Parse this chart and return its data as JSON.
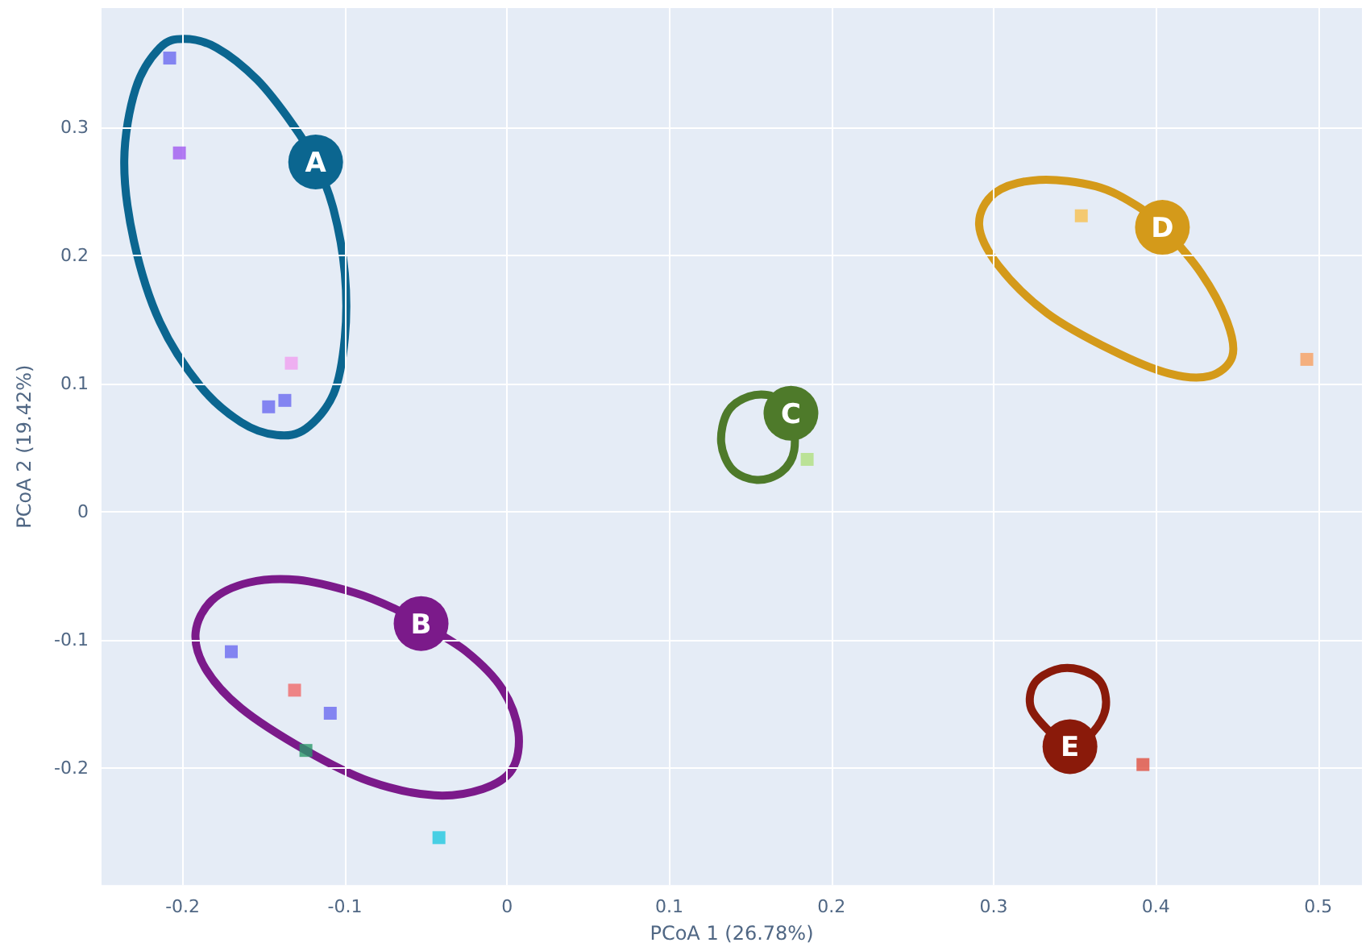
{
  "chart_data": {
    "type": "scatter",
    "xlabel": "PCoA 1 (26.78%)",
    "ylabel": "PCoA 2 (19.42%)",
    "xlim": [
      -0.25,
      0.527
    ],
    "ylim": [
      -0.291,
      0.393
    ],
    "xticks": [
      -0.2,
      -0.1,
      0,
      0.1,
      0.2,
      0.3,
      0.4,
      0.5
    ],
    "yticks": [
      -0.2,
      -0.1,
      0,
      0.1,
      0.2,
      0.3
    ],
    "grid": true,
    "legend": false,
    "marker": "square",
    "annotations": [
      "A",
      "B",
      "C",
      "D",
      "E"
    ],
    "series": [
      {
        "x": [
          -0.208,
          -0.202,
          -0.133,
          -0.147,
          -0.137,
          -0.17,
          -0.131,
          -0.109,
          -0.124,
          -0.042,
          0.185,
          0.354,
          0.493,
          0.392
        ],
        "values": [
          0.354,
          0.28,
          0.116,
          0.082,
          0.087,
          -0.109,
          -0.139,
          -0.157,
          -0.186,
          -0.254,
          0.041,
          0.231,
          0.119,
          -0.197
        ],
        "colors": [
          "#6a6af0",
          "#a05af0",
          "#f0a0f0",
          "#6a6af0",
          "#6a6af0",
          "#6a6af0",
          "#f06a6a",
          "#6a6af0",
          "#2a9a6a",
          "#20c8e0",
          "#b0e080",
          "#f8c050",
          "#f8a060",
          "#e05040"
        ]
      }
    ]
  }
}
